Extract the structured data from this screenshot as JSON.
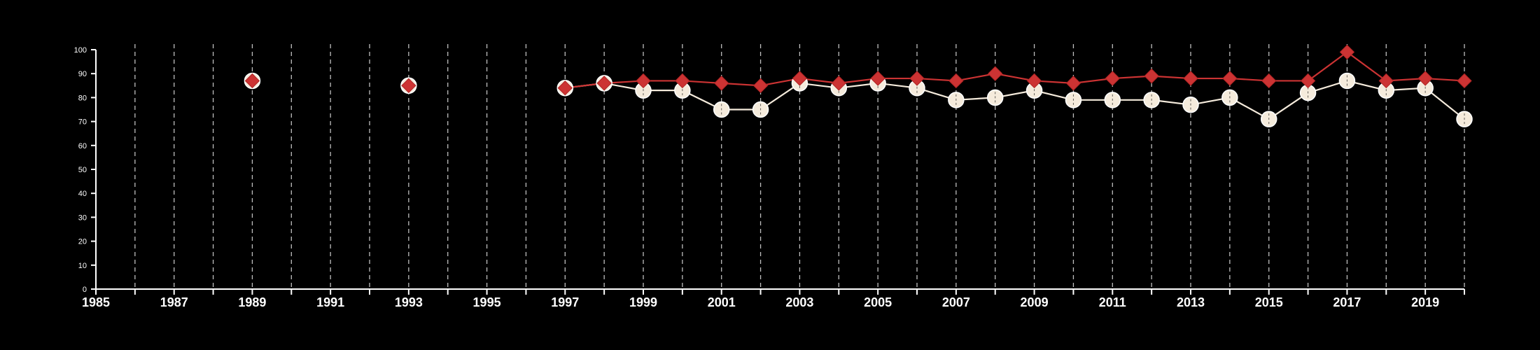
{
  "chart_data": {
    "type": "line",
    "title": "",
    "xlabel": "",
    "ylabel": "",
    "xlim": [
      1985,
      2020
    ],
    "ylim": [
      0,
      100
    ],
    "x_ticks": [
      1985,
      1987,
      1989,
      1991,
      1993,
      1995,
      1997,
      1999,
      2001,
      2003,
      2005,
      2007,
      2009,
      2011,
      2013,
      2015,
      2017,
      2019
    ],
    "y_ticks": [
      0,
      10,
      20,
      30,
      40,
      50,
      60,
      70,
      80,
      90,
      100
    ],
    "grid": "vertical dashed at every year",
    "series": [
      {
        "marker": "circle",
        "color": "#f5ebdc",
        "points": [
          [
            1989,
            87
          ],
          [
            1993,
            85
          ],
          [
            1997,
            84
          ],
          [
            1998,
            86
          ],
          [
            1999,
            83
          ],
          [
            2000,
            83
          ],
          [
            2001,
            75
          ],
          [
            2002,
            75
          ],
          [
            2003,
            86
          ],
          [
            2004,
            84
          ],
          [
            2005,
            86
          ],
          [
            2006,
            84
          ],
          [
            2007,
            79
          ],
          [
            2008,
            80
          ],
          [
            2009,
            83
          ],
          [
            2010,
            79
          ],
          [
            2011,
            79
          ],
          [
            2012,
            79
          ],
          [
            2013,
            77
          ],
          [
            2014,
            80
          ],
          [
            2015,
            71
          ],
          [
            2016,
            82
          ],
          [
            2017,
            87
          ],
          [
            2018,
            83
          ],
          [
            2019,
            84
          ],
          [
            2020,
            71
          ]
        ]
      },
      {
        "marker": "diamond",
        "color": "#cc3333",
        "points": [
          [
            1989,
            87
          ],
          [
            1993,
            85
          ],
          [
            1997,
            84
          ],
          [
            1998,
            86
          ],
          [
            1999,
            87
          ],
          [
            2000,
            87
          ],
          [
            2001,
            86
          ],
          [
            2002,
            85
          ],
          [
            2003,
            88
          ],
          [
            2004,
            86
          ],
          [
            2005,
            88
          ],
          [
            2006,
            88
          ],
          [
            2007,
            87
          ],
          [
            2008,
            90
          ],
          [
            2009,
            87
          ],
          [
            2010,
            86
          ],
          [
            2011,
            88
          ],
          [
            2012,
            89
          ],
          [
            2013,
            88
          ],
          [
            2014,
            88
          ],
          [
            2015,
            87
          ],
          [
            2016,
            87
          ],
          [
            2017,
            99
          ],
          [
            2018,
            87
          ],
          [
            2019,
            88
          ],
          [
            2020,
            87
          ]
        ]
      }
    ]
  }
}
